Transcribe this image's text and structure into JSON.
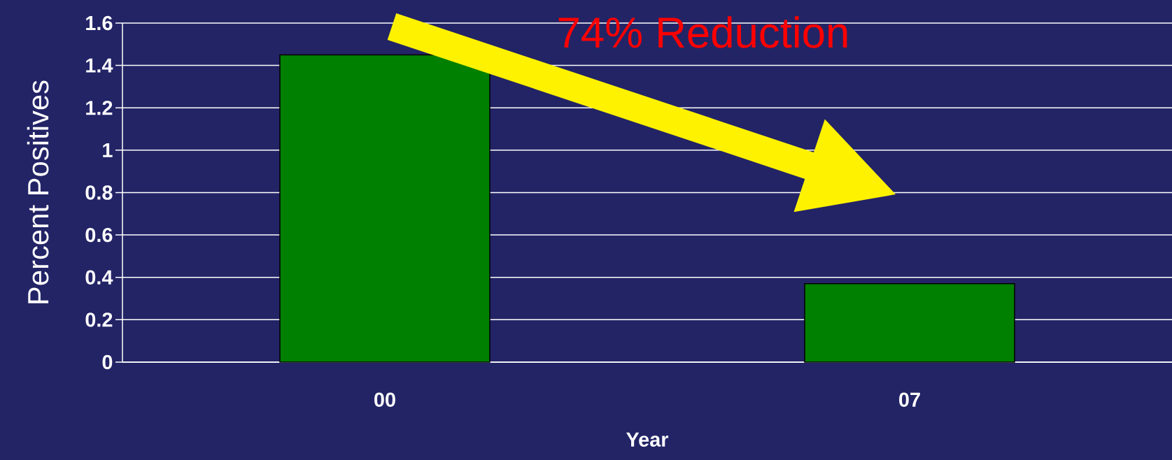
{
  "chart_data": {
    "type": "bar",
    "categories": [
      "00",
      "07"
    ],
    "values": [
      1.45,
      0.37
    ],
    "color": "#008000",
    "xlabel": "Year",
    "ylabel": "Percent Positives",
    "ylim": [
      0,
      1.6
    ],
    "yticks": [
      0,
      0.2,
      0.4,
      0.6,
      0.8,
      1,
      1.2,
      1.4,
      1.6
    ],
    "grid": "y",
    "annotations": [
      "74% Reduction"
    ]
  }
}
